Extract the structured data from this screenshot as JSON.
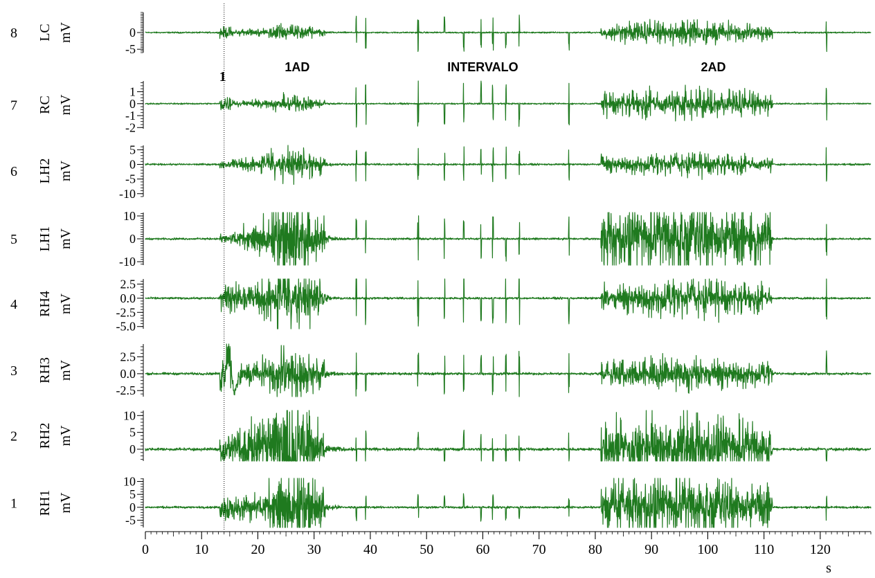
{
  "chart_data": {
    "type": "line",
    "xlabel": "s",
    "x_range": [
      0,
      129
    ],
    "x_ticks": [
      0,
      10,
      20,
      30,
      40,
      50,
      60,
      70,
      80,
      90,
      100,
      110,
      120
    ],
    "x_tick_labels": [
      "0",
      "10",
      "20",
      "30",
      "40",
      "50",
      "60",
      "70",
      "80",
      "90",
      "100",
      "110",
      "120"
    ],
    "marker_time": 14,
    "marker_label": "1",
    "annotations": [
      {
        "text": "1AD",
        "x": 27,
        "ch": "RC"
      },
      {
        "text": "INTERVALO",
        "x": 60,
        "ch": "RC"
      },
      {
        "text": "2AD",
        "x": 101,
        "ch": "RC"
      }
    ],
    "series": [
      {
        "number": "8",
        "name": "LC",
        "unit": "mV",
        "ylim": [
          -6,
          6
        ],
        "ticks": [
          0,
          -5
        ],
        "tick_labels": [
          "0",
          "-5"
        ],
        "color": "#1f7a1f"
      },
      {
        "number": "7",
        "name": "RC",
        "unit": "mV",
        "ylim": [
          -2.1,
          1.9
        ],
        "ticks": [
          1,
          0,
          -1,
          -2
        ],
        "tick_labels": [
          "1",
          "0",
          "-1",
          "-2"
        ],
        "color": "#1f7a1f"
      },
      {
        "number": "6",
        "name": "LH2",
        "unit": "mV",
        "ylim": [
          -11,
          6.5
        ],
        "ticks": [
          5,
          0,
          -5,
          -10
        ],
        "tick_labels": [
          "5",
          "0",
          "-5",
          "-10"
        ],
        "color": "#1f7a1f"
      },
      {
        "number": "5",
        "name": "LH1",
        "unit": "mV",
        "ylim": [
          -11.5,
          11.5
        ],
        "ticks": [
          10,
          0,
          -10
        ],
        "tick_labels": [
          "10",
          "0",
          "-10"
        ],
        "color": "#1f7a1f"
      },
      {
        "number": "4",
        "name": "RH4",
        "unit": "mV",
        "ylim": [
          -5.4,
          3.4
        ],
        "ticks": [
          2.5,
          0,
          -2.5,
          -5
        ],
        "tick_labels": [
          "2.5",
          "0.0",
          "-2.5",
          "-5.0"
        ],
        "color": "#1f7a1f"
      },
      {
        "number": "3",
        "name": "RH3",
        "unit": "mV",
        "ylim": [
          -3.4,
          4.4
        ],
        "ticks": [
          2.5,
          0,
          -2.5
        ],
        "tick_labels": [
          "2.5",
          "0.0",
          "-2.5"
        ],
        "color": "#1f7a1f"
      },
      {
        "number": "2",
        "name": "RH2",
        "unit": "mV",
        "ylim": [
          -3.5,
          11.5
        ],
        "ticks": [
          10,
          5,
          0
        ],
        "tick_labels": [
          "10",
          "5",
          "0"
        ],
        "color": "#1f7a1f"
      },
      {
        "number": "1",
        "name": "RH1",
        "unit": "mV",
        "ylim": [
          -7.8,
          11.2
        ],
        "ticks": [
          10,
          5,
          0,
          -5
        ],
        "tick_labels": [
          "10",
          "5",
          "0",
          "-5"
        ],
        "color": "#1f7a1f"
      }
    ]
  }
}
